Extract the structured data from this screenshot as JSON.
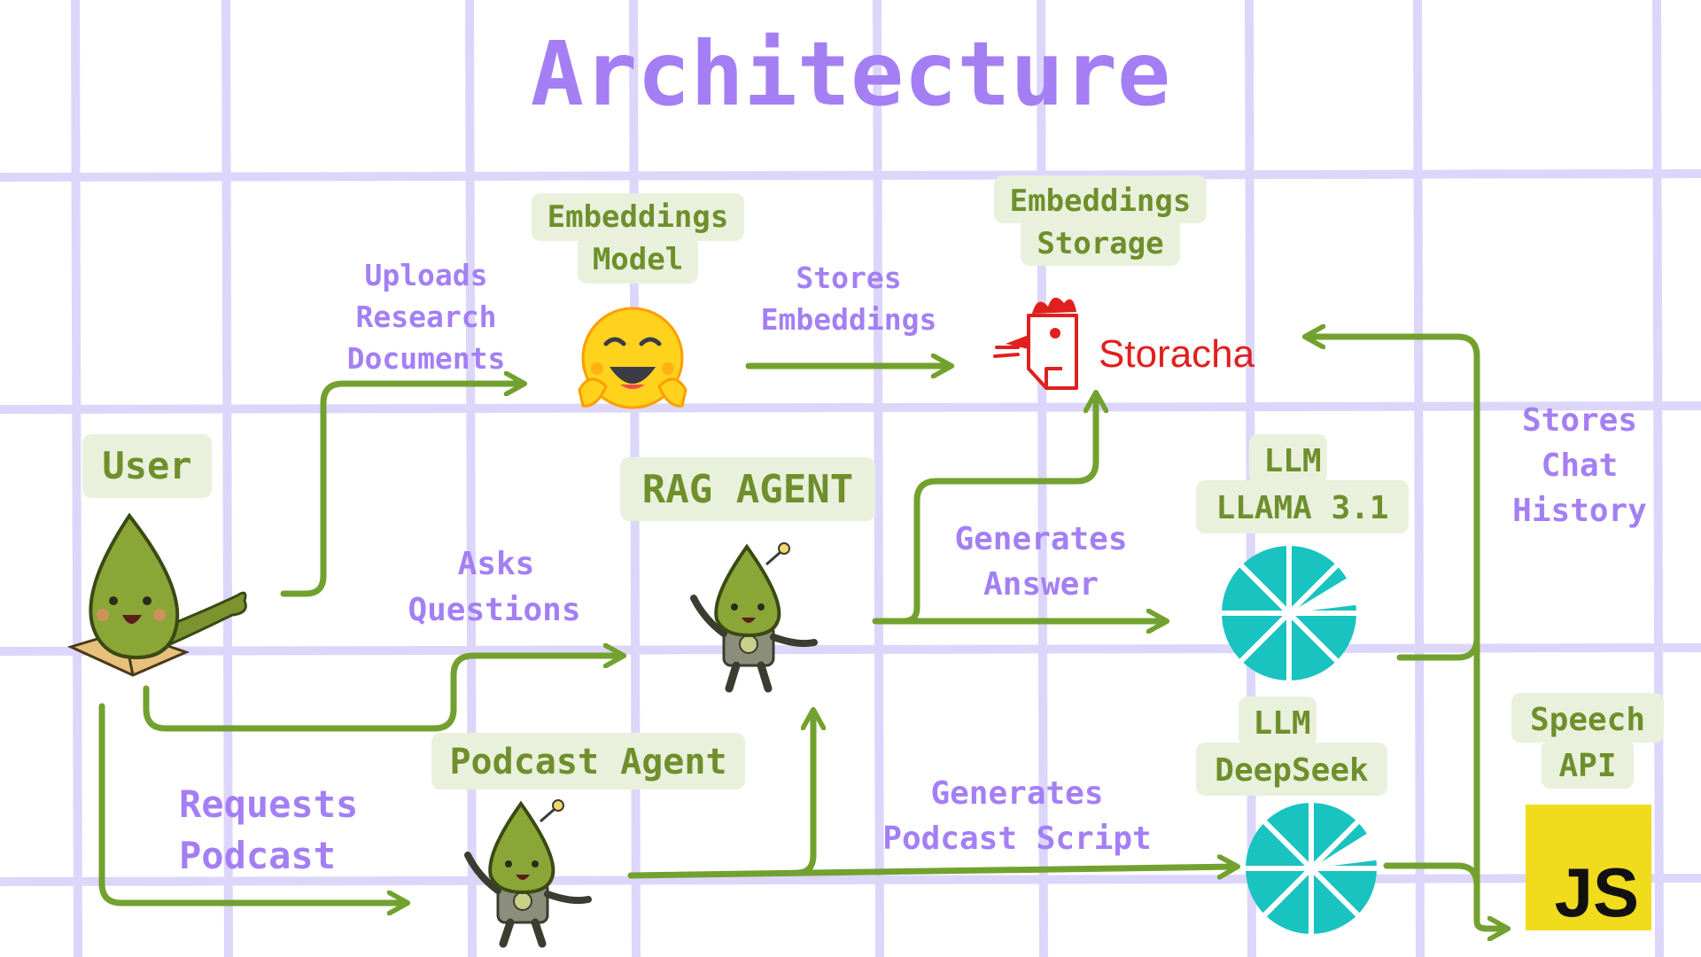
{
  "title": "Architecture",
  "colors": {
    "title": "#a47ff4",
    "label_green": "#6e8f2b",
    "pill_bg": "#e9f1dc",
    "flow_line": "#73a12f",
    "grid": "#ddd6fb",
    "storacha_red": "#e0201e",
    "llm_teal": "#19c3c0",
    "js_yellow": "#f0db1d"
  },
  "nodes": {
    "user": {
      "label": "User",
      "icon": "diary-droplet-mascot"
    },
    "embeddings_model": {
      "line1": "Embeddings",
      "line2": "Model",
      "icon": "hugging-face-emoji"
    },
    "embeddings_storage": {
      "line1": "Embeddings",
      "line2": "Storage",
      "brand": "Storacha",
      "icon": "rooster-logo"
    },
    "rag_agent": {
      "label": "RAG AGENT",
      "icon": "robot-droplet-mascot"
    },
    "podcast_agent": {
      "label": "Podcast Agent",
      "icon": "robot-droplet-mascot"
    },
    "llm_llama": {
      "line1": "LLM",
      "line2": "LLAMA 3.1",
      "icon": "teal-pinwheel-logo"
    },
    "llm_deepseek": {
      "line1": "LLM",
      "line2": "DeepSeek",
      "icon": "teal-pinwheel-logo"
    },
    "speech_api": {
      "line1": "Speech",
      "line2": "API",
      "badge": "JS",
      "icon": "javascript-logo"
    }
  },
  "edges": {
    "uploads": {
      "line1": "Uploads",
      "line2": "Research",
      "line3": "Documents"
    },
    "stores_embeddings": {
      "line1": "Stores",
      "line2": "Embeddings"
    },
    "asks": {
      "line1": "Asks",
      "line2": "Questions"
    },
    "requests": {
      "line1": "Requests",
      "line2": "Podcast"
    },
    "generates_answer": {
      "line1": "Generates",
      "line2": "Answer"
    },
    "generates_script": {
      "line1": "Generates",
      "line2": "Podcast Script"
    },
    "stores_chat": {
      "line1": "Stores",
      "line2": "Chat",
      "line3": "History"
    }
  }
}
